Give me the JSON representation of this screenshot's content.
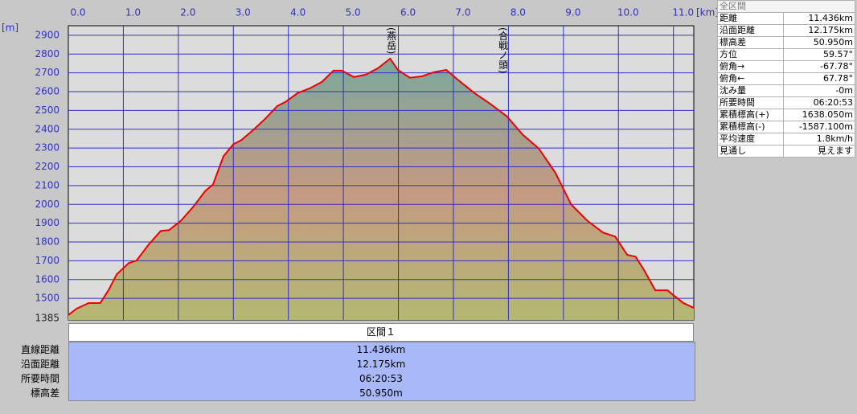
{
  "chart_data": {
    "type": "area",
    "xlabel": "[km]",
    "ylabel": "[m]",
    "x": [
      0,
      0.15,
      0.37,
      0.58,
      0.73,
      0.88,
      1.1,
      1.24,
      1.46,
      1.68,
      1.83,
      2.05,
      2.27,
      2.49,
      2.63,
      2.82,
      3.0,
      3.14,
      3.36,
      3.58,
      3.8,
      3.95,
      4.17,
      4.39,
      4.61,
      4.82,
      4.97,
      5.19,
      5.41,
      5.63,
      5.85,
      5.99,
      6.21,
      6.43,
      6.65,
      6.87,
      7.09,
      7.38,
      7.68,
      7.97,
      8.26,
      8.55,
      8.85,
      9.14,
      9.43,
      9.72,
      9.94,
      10.16,
      10.31,
      10.45,
      10.67,
      10.89,
      11.18,
      11.37
    ],
    "series": [
      {
        "color": "#ee0000",
        "values": [
          1411,
          1445,
          1475,
          1475,
          1543,
          1628,
          1688,
          1701,
          1786,
          1859,
          1863,
          1914,
          1987,
          2072,
          2106,
          2256,
          2320,
          2341,
          2396,
          2456,
          2524,
          2546,
          2593,
          2618,
          2652,
          2712,
          2712,
          2678,
          2691,
          2725,
          2776,
          2716,
          2674,
          2682,
          2704,
          2716,
          2661,
          2593,
          2533,
          2469,
          2371,
          2298,
          2170,
          2000,
          1914,
          1850,
          1829,
          1731,
          1722,
          1658,
          1543,
          1543,
          1475,
          1449
        ]
      }
    ],
    "xlim": [
      0,
      11.37
    ],
    "ylim": [
      1385,
      2951
    ],
    "xticks": [
      {
        "value": 0,
        "label": "0.0"
      },
      {
        "value": 1,
        "label": "1.0"
      },
      {
        "value": 2,
        "label": "2.0"
      },
      {
        "value": 3,
        "label": "3.0"
      },
      {
        "value": 4,
        "label": "4.0"
      },
      {
        "value": 5,
        "label": "5.0"
      },
      {
        "value": 6,
        "label": "6.0"
      },
      {
        "value": 7,
        "label": "7.0"
      },
      {
        "value": 8,
        "label": "8.0"
      },
      {
        "value": 9,
        "label": "9.0"
      },
      {
        "value": 10,
        "label": "10.0"
      },
      {
        "value": 11,
        "label": "11.0"
      }
    ],
    "yticks": [
      1385,
      1500,
      1600,
      1700,
      1800,
      1900,
      2000,
      2100,
      2200,
      2300,
      2400,
      2500,
      2600,
      2700,
      2800,
      2900
    ],
    "grid": true,
    "annotations": [
      {
        "text": "(燕岳)",
        "x": 5.87
      },
      {
        "text": "(合戦ノ頭)",
        "x": 7.9
      }
    ]
  },
  "summary": {
    "title": "全区間",
    "rows": [
      [
        "距離",
        "11.436km"
      ],
      [
        "沿面距離",
        "12.175km"
      ],
      [
        "標高差",
        "50.950m"
      ],
      [
        "方位",
        "59.57°"
      ],
      [
        "俯角→",
        "-67.78°"
      ],
      [
        "俯角←",
        "67.78°"
      ],
      [
        "沈み量",
        "-0m"
      ],
      [
        "所要時間",
        "06:20:53"
      ],
      [
        "累積標高(+)",
        "1638.050m"
      ],
      [
        "累積標高(-)",
        "-1587.100m"
      ],
      [
        "平均速度",
        "1.8km/h"
      ],
      [
        "見通し",
        "見えます"
      ]
    ]
  },
  "section": {
    "title": "区間１",
    "rows": [
      [
        "直線距離",
        "11.436km"
      ],
      [
        "沿面距離",
        "12.175km"
      ],
      [
        "所要時間",
        "06:20:53"
      ],
      [
        "標高差",
        "50.950m"
      ]
    ]
  }
}
